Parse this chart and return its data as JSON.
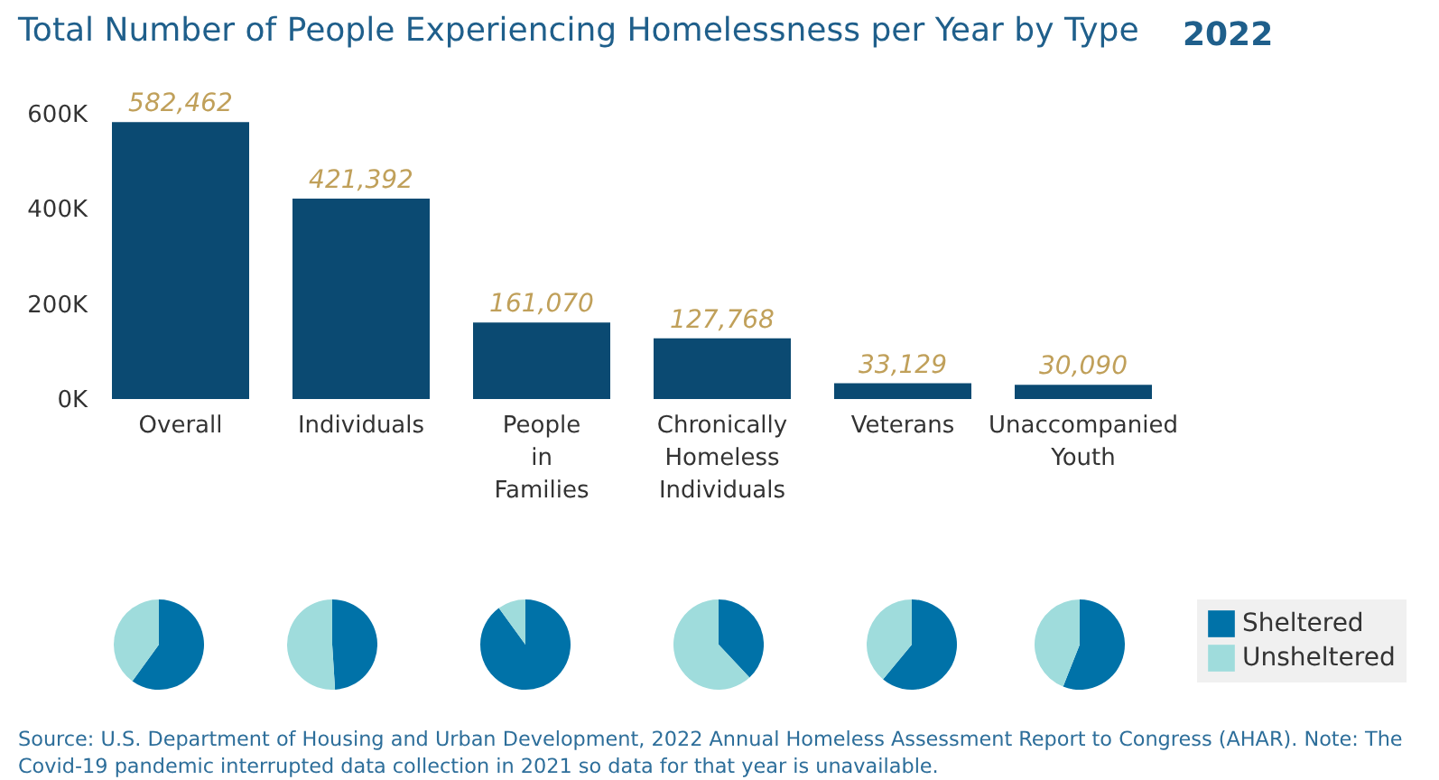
{
  "chart_data": [
    {
      "type": "bar",
      "title": "Total Number of People Experiencing Homelessness per Year by Type",
      "categories": [
        "Overall",
        "Individuals",
        "People in Families",
        "Chronically Homeless Individuals",
        "Veterans",
        "Unaccompanied Youth"
      ],
      "values": [
        582462,
        421392,
        161070,
        127768,
        33129,
        30090
      ],
      "color": "#0b4a72",
      "ylim": [
        0,
        600000
      ],
      "yticks": [
        {
          "value": 0,
          "label": "0K"
        },
        {
          "value": 200000,
          "label": "200K"
        },
        {
          "value": 400000,
          "label": "400K"
        },
        {
          "value": 600000,
          "label": "600K"
        }
      ],
      "value_labels": [
        "582,462",
        "421,392",
        "161,070",
        "127,768",
        "33,129",
        "30,090"
      ],
      "grid": false,
      "annotations": [
        "2022",
        "Source: U.S. Department of Housing and Urban Development, 2022 Annual Homeless Assessment Report to Congress (AHAR). Note: The Covid-19 pandemic interrupted data collection in 2021 so data for that year is unavailable."
      ]
    },
    {
      "type": "pie",
      "categories": [
        null,
        null
      ],
      "values": [
        60,
        40
      ],
      "colors": [
        "#0072a8",
        "#9fdcdc"
      ]
    },
    {
      "type": "pie",
      "categories": [
        null,
        null
      ],
      "values": [
        49,
        51
      ],
      "colors": [
        "#0072a8",
        "#9fdcdc"
      ]
    },
    {
      "type": "pie",
      "categories": [
        null,
        null
      ],
      "values": [
        90,
        10
      ],
      "colors": [
        "#0072a8",
        "#9fdcdc"
      ]
    },
    {
      "type": "pie",
      "categories": [
        null,
        null
      ],
      "values": [
        38,
        62
      ],
      "colors": [
        "#0072a8",
        "#9fdcdc"
      ]
    },
    {
      "type": "pie",
      "categories": [
        null,
        null
      ],
      "values": [
        61,
        39
      ],
      "colors": [
        "#0072a8",
        "#9fdcdc"
      ]
    },
    {
      "type": "pie",
      "categories": [
        "Sheltered",
        "Unsheltered"
      ],
      "values": [
        56,
        44
      ],
      "colors": [
        "#0072a8",
        "#9fdcdc"
      ],
      "legend": "right"
    }
  ]
}
